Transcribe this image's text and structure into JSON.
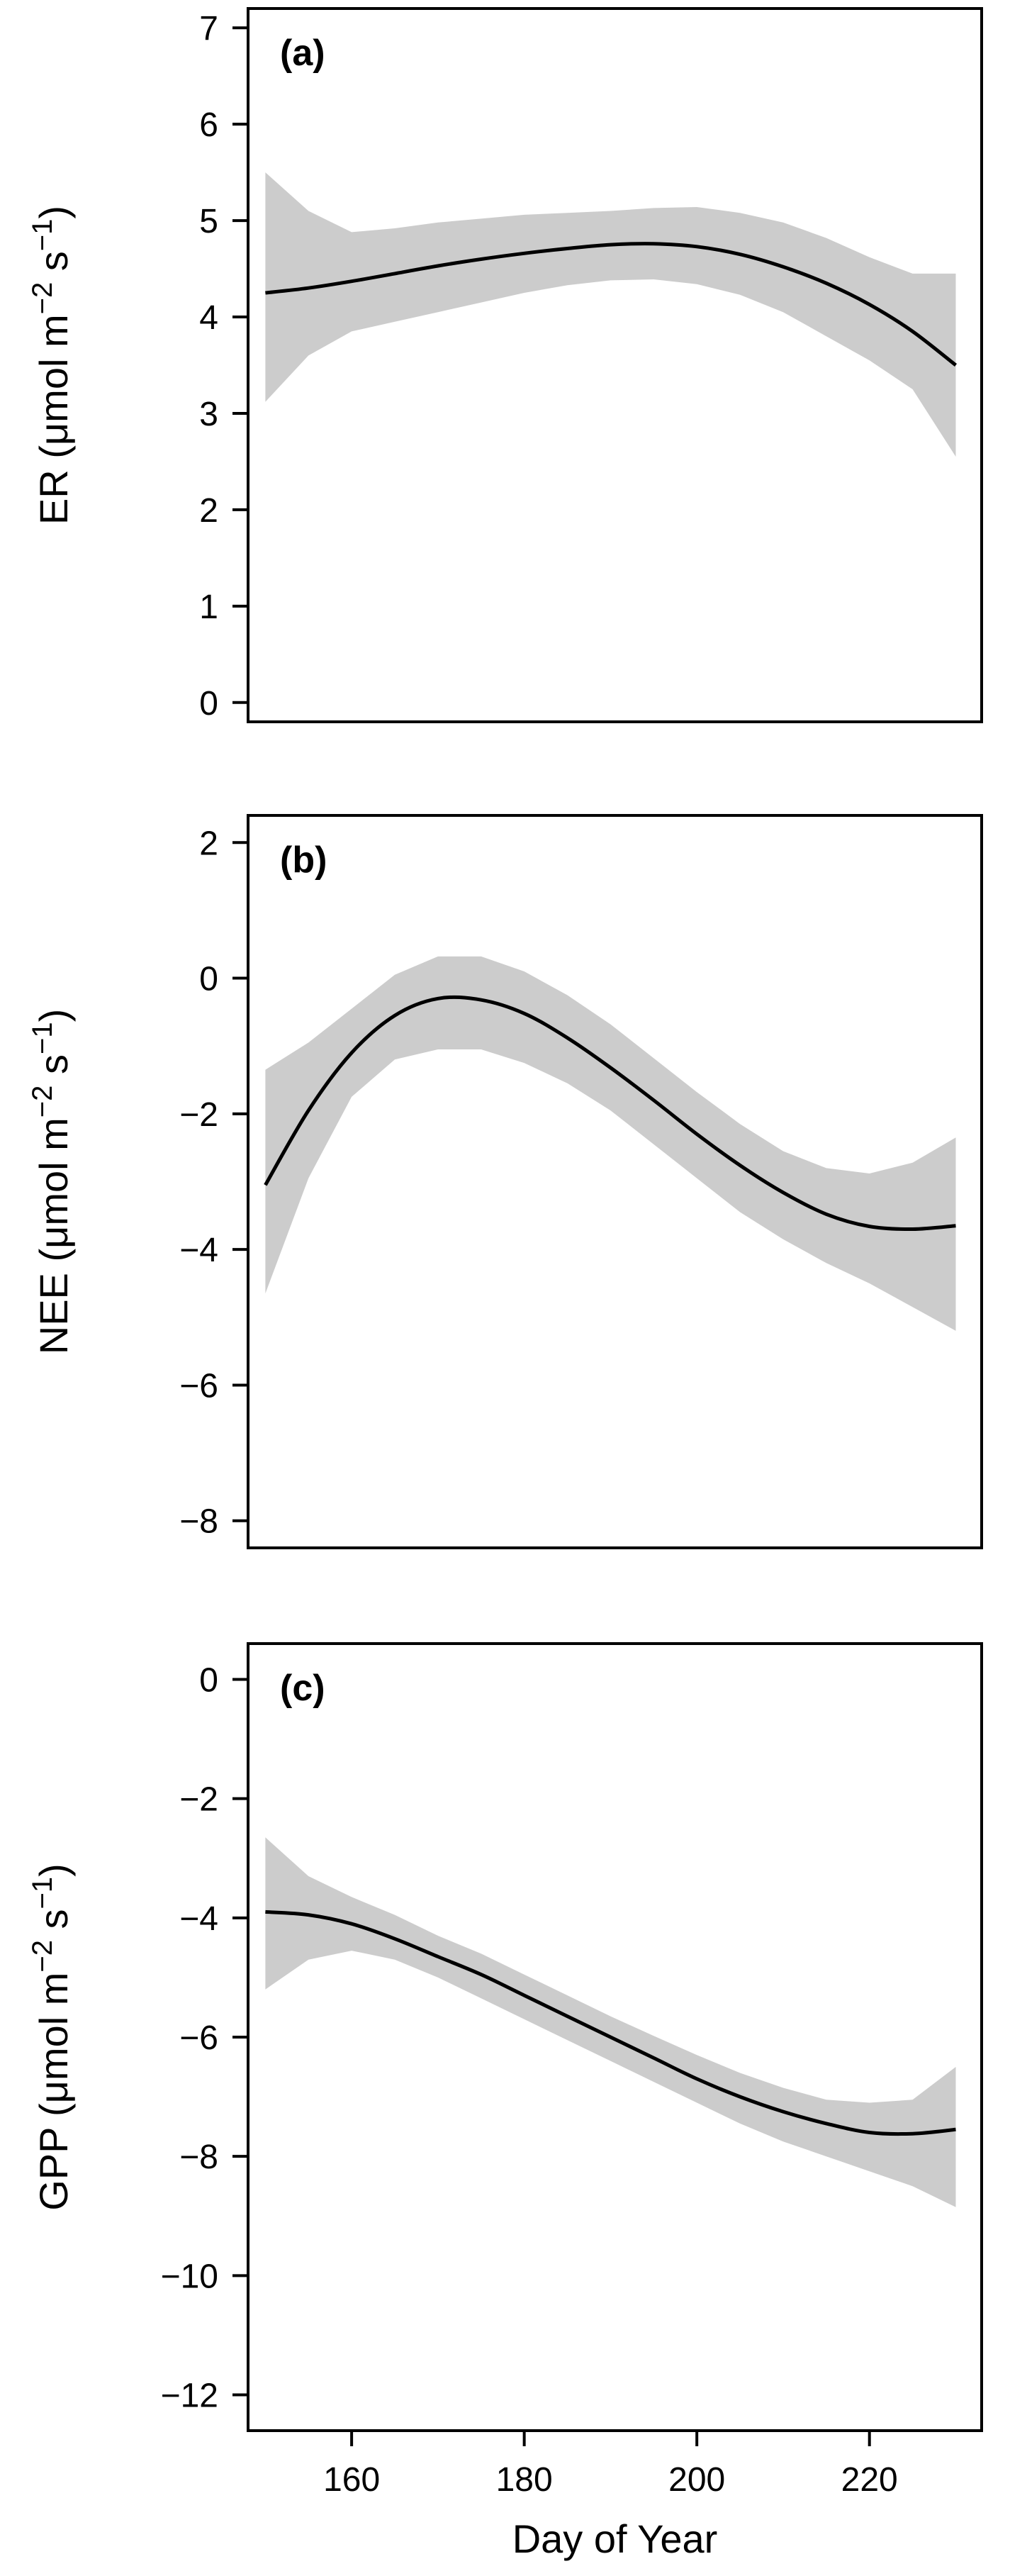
{
  "chart_data": [
    {
      "type": "line",
      "panel_label": "(a)",
      "ylabel_main": "ER (μmol m",
      "ylabel_sup1": "−2",
      "ylabel_mid": " s",
      "ylabel_sup2": "−1",
      "ylabel_end": ")",
      "xlim": [
        148,
        233
      ],
      "ylim": [
        -0.2,
        7.2
      ],
      "yticks": [
        0,
        1,
        2,
        3,
        4,
        5,
        6,
        7
      ],
      "grid": false,
      "series": [
        {
          "x": [
            150,
            155,
            160,
            165,
            170,
            175,
            180,
            185,
            190,
            195,
            200,
            205,
            210,
            215,
            220,
            225,
            230
          ],
          "y": [
            4.25,
            4.3,
            4.37,
            4.45,
            4.53,
            4.6,
            4.66,
            4.71,
            4.75,
            4.76,
            4.73,
            4.65,
            4.52,
            4.35,
            4.13,
            3.85,
            3.5
          ],
          "lower": [
            3.12,
            3.6,
            3.85,
            3.95,
            4.05,
            4.15,
            4.25,
            4.33,
            4.38,
            4.39,
            4.34,
            4.23,
            4.05,
            3.8,
            3.55,
            3.25,
            2.55
          ],
          "upper": [
            5.5,
            5.1,
            4.88,
            4.92,
            4.98,
            5.02,
            5.06,
            5.08,
            5.1,
            5.13,
            5.14,
            5.08,
            4.98,
            4.82,
            4.62,
            4.45,
            4.45
          ]
        }
      ]
    },
    {
      "type": "line",
      "panel_label": "(b)",
      "ylabel_main": "NEE (μmol m",
      "ylabel_sup1": "−2",
      "ylabel_mid": " s",
      "ylabel_sup2": "−1",
      "ylabel_end": ")",
      "xlim": [
        148,
        233
      ],
      "ylim": [
        -8.4,
        2.4
      ],
      "yticks": [
        2,
        0,
        -2,
        -4,
        -6,
        -8
      ],
      "grid": false,
      "series": [
        {
          "x": [
            150,
            155,
            160,
            165,
            170,
            175,
            180,
            185,
            190,
            195,
            200,
            205,
            210,
            215,
            220,
            225,
            230
          ],
          "y": [
            -3.05,
            -1.95,
            -1.1,
            -0.55,
            -0.3,
            -0.32,
            -0.52,
            -0.88,
            -1.32,
            -1.8,
            -2.3,
            -2.76,
            -3.16,
            -3.48,
            -3.66,
            -3.7,
            -3.65
          ],
          "lower": [
            -4.65,
            -2.95,
            -1.75,
            -1.2,
            -1.05,
            -1.05,
            -1.25,
            -1.55,
            -1.95,
            -2.45,
            -2.95,
            -3.45,
            -3.85,
            -4.2,
            -4.5,
            -4.85,
            -5.2
          ],
          "upper": [
            -1.35,
            -0.95,
            -0.45,
            0.05,
            0.32,
            0.32,
            0.1,
            -0.25,
            -0.68,
            -1.18,
            -1.68,
            -2.15,
            -2.55,
            -2.8,
            -2.88,
            -2.72,
            -2.35
          ]
        }
      ]
    },
    {
      "type": "line",
      "panel_label": "(c)",
      "ylabel_main": "GPP (μmol m",
      "ylabel_sup1": "−2",
      "ylabel_mid": " s",
      "ylabel_sup2": "−1",
      "ylabel_end": ")",
      "xlim": [
        148,
        233
      ],
      "ylim": [
        -12.6,
        0.6
      ],
      "yticks": [
        0,
        -2,
        -4,
        -6,
        -8,
        -10,
        -12
      ],
      "xticks": [
        160,
        180,
        200,
        220
      ],
      "xlabel": "Day of Year",
      "grid": false,
      "series": [
        {
          "x": [
            150,
            155,
            160,
            165,
            170,
            175,
            180,
            185,
            190,
            195,
            200,
            205,
            210,
            215,
            220,
            225,
            230
          ],
          "y": [
            -3.9,
            -3.95,
            -4.1,
            -4.35,
            -4.65,
            -4.95,
            -5.3,
            -5.65,
            -6.0,
            -6.35,
            -6.7,
            -7.0,
            -7.25,
            -7.45,
            -7.6,
            -7.62,
            -7.55
          ],
          "lower": [
            -5.2,
            -4.7,
            -4.55,
            -4.7,
            -5.0,
            -5.35,
            -5.7,
            -6.05,
            -6.4,
            -6.75,
            -7.1,
            -7.45,
            -7.75,
            -8.0,
            -8.25,
            -8.5,
            -8.85
          ],
          "upper": [
            -2.65,
            -3.3,
            -3.65,
            -3.95,
            -4.3,
            -4.6,
            -4.95,
            -5.3,
            -5.65,
            -5.98,
            -6.3,
            -6.6,
            -6.85,
            -7.05,
            -7.1,
            -7.05,
            -6.5
          ]
        }
      ]
    }
  ],
  "style": {
    "line_color": "#000000",
    "band_color": "#cccccc",
    "frame_color": "#000000"
  }
}
